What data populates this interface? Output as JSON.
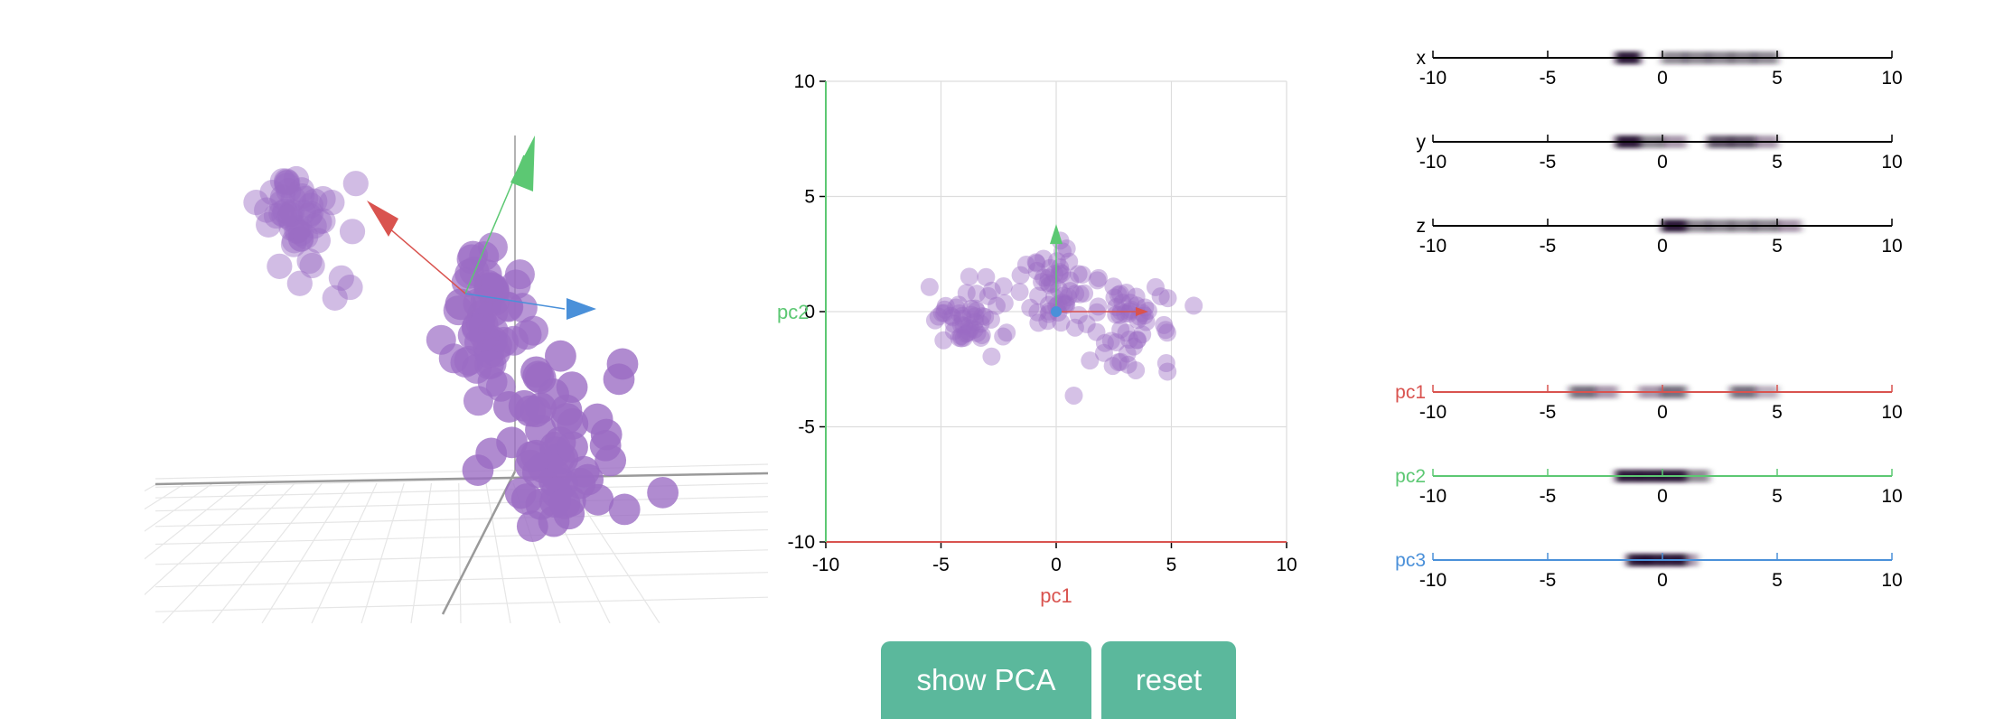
{
  "colors": {
    "pc1": "#d9534f",
    "pc2": "#5cc873",
    "pc3": "#4a90d9",
    "points": "#9b6cc4",
    "button": "#5bb89c",
    "grid": "#dddddd"
  },
  "controls": {
    "show_pca": "show PCA",
    "reset": "reset"
  },
  "chart_data": [
    {
      "type": "scatter",
      "title": "",
      "xlabel": "pc1",
      "ylabel": "pc2",
      "xlim": [
        -10,
        10
      ],
      "ylim": [
        -10,
        10
      ],
      "xticks": [
        -10,
        -5,
        0,
        5,
        10
      ],
      "yticks": [
        -10,
        -5,
        0,
        5,
        10
      ],
      "grid": true,
      "clusters": [
        {
          "center": [
            -3.8,
            -0.3
          ],
          "spread": [
            0.9,
            0.8
          ],
          "count": 55
        },
        {
          "center": [
            0.0,
            1.0
          ],
          "spread": [
            1.0,
            0.9
          ],
          "count": 55
        },
        {
          "center": [
            3.2,
            -0.5
          ],
          "spread": [
            0.9,
            0.9
          ],
          "count": 55
        }
      ],
      "component_arrows": [
        {
          "name": "pc1",
          "dx": 4.0,
          "dy": 0
        },
        {
          "name": "pc2",
          "dx": 0,
          "dy": 3.8
        }
      ]
    },
    {
      "type": "heatmap",
      "title": "",
      "xlim": [
        -10,
        10
      ],
      "xticks": [
        -10,
        -5,
        0,
        5,
        10
      ],
      "strips": [
        {
          "label": "x",
          "colorKey": "axis",
          "density": [
            [
              -1.5,
              1.5
            ],
            [
              0.5,
              0.4
            ],
            [
              1.5,
              0.4
            ],
            [
              2.5,
              0.4
            ],
            [
              3.5,
              0.4
            ],
            [
              4.5,
              0.4
            ]
          ]
        },
        {
          "label": "y",
          "colorKey": "axis",
          "density": [
            [
              -1.5,
              1.5
            ],
            [
              -0.5,
              0.4
            ],
            [
              0.5,
              0.3
            ],
            [
              2.5,
              0.6
            ],
            [
              3.5,
              0.6
            ],
            [
              4.5,
              0.3
            ]
          ]
        },
        {
          "label": "z",
          "colorKey": "axis",
          "density": [
            [
              0.5,
              5.5
            ],
            [
              1.5,
              0.4
            ],
            [
              2.5,
              0.4
            ],
            [
              3.5,
              0.4
            ],
            [
              4.5,
              0.4
            ],
            [
              5.5,
              0.3
            ]
          ]
        },
        {
          "label": "pc1",
          "colorKey": "pc1",
          "density": [
            [
              -3.5,
              0.5
            ],
            [
              -2.5,
              0.3
            ],
            [
              -0.5,
              0.3
            ],
            [
              0.5,
              0.5
            ],
            [
              3.5,
              0.5
            ],
            [
              4.5,
              0.2
            ]
          ]
        },
        {
          "label": "pc2",
          "colorKey": "pc2",
          "density": [
            [
              -1.5,
              1.5
            ],
            [
              -0.5,
              0.9
            ],
            [
              0.5,
              0.9
            ],
            [
              1.5,
              0.4
            ]
          ]
        },
        {
          "label": "pc3",
          "colorKey": "pc3",
          "density": [
            [
              -1.0,
              1.0
            ],
            [
              -0.5,
              0.9
            ],
            [
              0.5,
              0.9
            ],
            [
              1.0,
              0.3
            ]
          ]
        }
      ]
    }
  ]
}
